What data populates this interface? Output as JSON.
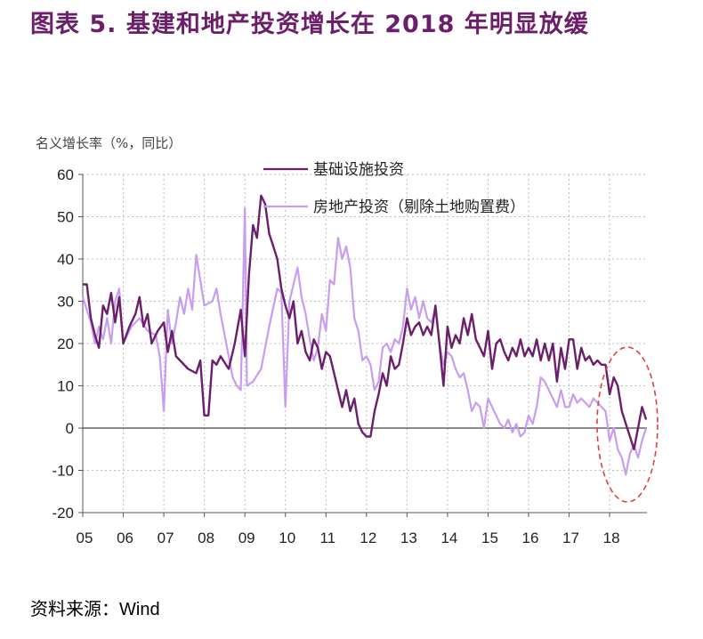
{
  "title": "图表  5. 基建和地产投资增长在 2018 年明显放缓",
  "source": "资料来源：Wind",
  "colors": {
    "title": "#6b1f6b",
    "infra": "#6b1f6b",
    "realestate": "#c89cf0",
    "highlight": "#e0403c"
  },
  "chart_data": {
    "type": "line",
    "title": "图表 5. 基建和地产投资增长在 2018 年明显放缓",
    "ylabel": "名义增长率（%，同比）",
    "xlabel": "",
    "ylim": [
      -20,
      60
    ],
    "yticks": [
      60,
      50,
      40,
      30,
      20,
      10,
      0,
      -10,
      -20
    ],
    "xlim": [
      2005,
      2018.92
    ],
    "xticks": [
      {
        "year": 2005,
        "label": "05"
      },
      {
        "year": 2006,
        "label": "06"
      },
      {
        "year": 2007,
        "label": "07"
      },
      {
        "year": 2008,
        "label": "08"
      },
      {
        "year": 2009,
        "label": "09"
      },
      {
        "year": 2010,
        "label": "10"
      },
      {
        "year": 2011,
        "label": "11"
      },
      {
        "year": 2012,
        "label": "12"
      },
      {
        "year": 2013,
        "label": "13"
      },
      {
        "year": 2014,
        "label": "14"
      },
      {
        "year": 2015,
        "label": "15"
      },
      {
        "year": 2016,
        "label": "16"
      },
      {
        "year": 2017,
        "label": "17"
      },
      {
        "year": 2018,
        "label": "18"
      }
    ],
    "grid": "vertical+horizontal dotted",
    "legend": "top",
    "annotation": "dashed red ellipse highlighting 2018",
    "series": [
      {
        "name": "基础设施投资",
        "points": [
          [
            2005.0,
            34
          ],
          [
            2005.1,
            34
          ],
          [
            2005.2,
            26
          ],
          [
            2005.3,
            22
          ],
          [
            2005.4,
            19
          ],
          [
            2005.5,
            29
          ],
          [
            2005.6,
            27
          ],
          [
            2005.7,
            32
          ],
          [
            2005.8,
            25
          ],
          [
            2005.9,
            31
          ],
          [
            2006.0,
            20
          ],
          [
            2006.15,
            24
          ],
          [
            2006.3,
            27
          ],
          [
            2006.4,
            31
          ],
          [
            2006.5,
            24
          ],
          [
            2006.6,
            27
          ],
          [
            2006.7,
            20
          ],
          [
            2006.85,
            23
          ],
          [
            2007.0,
            25
          ],
          [
            2007.1,
            18
          ],
          [
            2007.2,
            23
          ],
          [
            2007.3,
            17
          ],
          [
            2007.4,
            16
          ],
          [
            2007.6,
            14
          ],
          [
            2007.8,
            13
          ],
          [
            2007.9,
            16
          ],
          [
            2008.0,
            3
          ],
          [
            2008.1,
            3
          ],
          [
            2008.2,
            16
          ],
          [
            2008.3,
            15
          ],
          [
            2008.4,
            17
          ],
          [
            2008.6,
            14
          ],
          [
            2008.75,
            20
          ],
          [
            2008.9,
            28
          ],
          [
            2009.0,
            17
          ],
          [
            2009.1,
            36
          ],
          [
            2009.2,
            48
          ],
          [
            2009.3,
            45
          ],
          [
            2009.4,
            55
          ],
          [
            2009.5,
            53
          ],
          [
            2009.6,
            46
          ],
          [
            2009.7,
            43
          ],
          [
            2009.8,
            40
          ],
          [
            2009.9,
            33
          ],
          [
            2010.0,
            29
          ],
          [
            2010.1,
            26
          ],
          [
            2010.2,
            30
          ],
          [
            2010.3,
            20
          ],
          [
            2010.4,
            23
          ],
          [
            2010.5,
            18
          ],
          [
            2010.6,
            16
          ],
          [
            2010.7,
            21
          ],
          [
            2010.8,
            19
          ],
          [
            2010.9,
            14
          ],
          [
            2011.0,
            18
          ],
          [
            2011.1,
            17
          ],
          [
            2011.2,
            13
          ],
          [
            2011.3,
            9
          ],
          [
            2011.4,
            5
          ],
          [
            2011.5,
            9
          ],
          [
            2011.6,
            4
          ],
          [
            2011.7,
            7
          ],
          [
            2011.8,
            1
          ],
          [
            2011.9,
            -1
          ],
          [
            2012.0,
            -2
          ],
          [
            2012.1,
            -2
          ],
          [
            2012.2,
            4
          ],
          [
            2012.3,
            8
          ],
          [
            2012.4,
            13
          ],
          [
            2012.5,
            10
          ],
          [
            2012.6,
            17
          ],
          [
            2012.7,
            14
          ],
          [
            2012.8,
            15
          ],
          [
            2012.9,
            20
          ],
          [
            2013.0,
            26
          ],
          [
            2013.1,
            22
          ],
          [
            2013.2,
            24
          ],
          [
            2013.3,
            25
          ],
          [
            2013.4,
            22
          ],
          [
            2013.5,
            24
          ],
          [
            2013.6,
            22
          ],
          [
            2013.7,
            29
          ],
          [
            2013.8,
            20
          ],
          [
            2013.9,
            10
          ],
          [
            2014.0,
            24
          ],
          [
            2014.1,
            19
          ],
          [
            2014.2,
            22
          ],
          [
            2014.3,
            20
          ],
          [
            2014.4,
            26
          ],
          [
            2014.5,
            22
          ],
          [
            2014.6,
            27
          ],
          [
            2014.7,
            21
          ],
          [
            2014.8,
            19
          ],
          [
            2014.9,
            17
          ],
          [
            2015.0,
            23
          ],
          [
            2015.1,
            14
          ],
          [
            2015.2,
            20
          ],
          [
            2015.3,
            21
          ],
          [
            2015.4,
            18
          ],
          [
            2015.5,
            16
          ],
          [
            2015.6,
            19
          ],
          [
            2015.7,
            17
          ],
          [
            2015.8,
            21
          ],
          [
            2015.9,
            17
          ],
          [
            2016.0,
            19
          ],
          [
            2016.1,
            17
          ],
          [
            2016.2,
            21
          ],
          [
            2016.3,
            16
          ],
          [
            2016.4,
            20
          ],
          [
            2016.5,
            16
          ],
          [
            2016.6,
            20
          ],
          [
            2016.7,
            11
          ],
          [
            2016.8,
            19
          ],
          [
            2016.9,
            14
          ],
          [
            2017.0,
            21
          ],
          [
            2017.1,
            21
          ],
          [
            2017.2,
            14
          ],
          [
            2017.3,
            19
          ],
          [
            2017.4,
            16
          ],
          [
            2017.5,
            17
          ],
          [
            2017.6,
            15
          ],
          [
            2017.7,
            16
          ],
          [
            2017.8,
            15
          ],
          [
            2017.9,
            15
          ],
          [
            2018.0,
            8
          ],
          [
            2018.1,
            12
          ],
          [
            2018.2,
            10
          ],
          [
            2018.3,
            4
          ],
          [
            2018.4,
            1
          ],
          [
            2018.5,
            -2
          ],
          [
            2018.6,
            -5
          ],
          [
            2018.7,
            0
          ],
          [
            2018.8,
            5
          ],
          [
            2018.9,
            2
          ]
        ]
      },
      {
        "name": "房地产投资（剔除土地购置费）",
        "points": [
          [
            2005.0,
            31
          ],
          [
            2005.1,
            28
          ],
          [
            2005.2,
            25
          ],
          [
            2005.3,
            20
          ],
          [
            2005.4,
            24
          ],
          [
            2005.5,
            21
          ],
          [
            2005.6,
            26
          ],
          [
            2005.7,
            20
          ],
          [
            2005.8,
            30
          ],
          [
            2005.9,
            33
          ],
          [
            2006.0,
            20
          ],
          [
            2006.2,
            24
          ],
          [
            2006.4,
            26
          ],
          [
            2006.6,
            23
          ],
          [
            2006.8,
            22
          ],
          [
            2006.9,
            17
          ],
          [
            2007.0,
            4
          ],
          [
            2007.1,
            28
          ],
          [
            2007.2,
            20
          ],
          [
            2007.3,
            25
          ],
          [
            2007.4,
            31
          ],
          [
            2007.5,
            27
          ],
          [
            2007.6,
            33
          ],
          [
            2007.7,
            28
          ],
          [
            2007.8,
            41
          ],
          [
            2007.9,
            35
          ],
          [
            2008.0,
            29
          ],
          [
            2008.2,
            30
          ],
          [
            2008.3,
            33
          ],
          [
            2008.4,
            27
          ],
          [
            2008.6,
            17
          ],
          [
            2008.7,
            12
          ],
          [
            2008.8,
            10
          ],
          [
            2008.9,
            9
          ],
          [
            2009.0,
            52
          ],
          [
            2009.05,
            10
          ],
          [
            2009.2,
            11
          ],
          [
            2009.4,
            14
          ],
          [
            2009.6,
            24
          ],
          [
            2009.8,
            33
          ],
          [
            2009.9,
            32
          ],
          [
            2010.0,
            5
          ],
          [
            2010.1,
            30
          ],
          [
            2010.3,
            38
          ],
          [
            2010.4,
            31
          ],
          [
            2010.5,
            27
          ],
          [
            2010.6,
            21
          ],
          [
            2010.7,
            16
          ],
          [
            2010.8,
            19
          ],
          [
            2010.9,
            27
          ],
          [
            2011.0,
            23
          ],
          [
            2011.1,
            35
          ],
          [
            2011.2,
            34
          ],
          [
            2011.3,
            45
          ],
          [
            2011.4,
            40
          ],
          [
            2011.5,
            43
          ],
          [
            2011.6,
            38
          ],
          [
            2011.7,
            26
          ],
          [
            2011.8,
            23
          ],
          [
            2011.9,
            16
          ],
          [
            2012.0,
            17
          ],
          [
            2012.1,
            15
          ],
          [
            2012.2,
            9
          ],
          [
            2012.3,
            11
          ],
          [
            2012.4,
            19
          ],
          [
            2012.5,
            20
          ],
          [
            2012.6,
            18
          ],
          [
            2012.7,
            21
          ],
          [
            2012.8,
            20
          ],
          [
            2012.9,
            24
          ],
          [
            2013.0,
            33
          ],
          [
            2013.1,
            28
          ],
          [
            2013.2,
            31
          ],
          [
            2013.3,
            26
          ],
          [
            2013.4,
            30
          ],
          [
            2013.5,
            26
          ],
          [
            2013.6,
            25
          ],
          [
            2013.7,
            28
          ],
          [
            2013.8,
            20
          ],
          [
            2013.9,
            15
          ],
          [
            2014.0,
            18
          ],
          [
            2014.1,
            17
          ],
          [
            2014.2,
            14
          ],
          [
            2014.3,
            12
          ],
          [
            2014.4,
            13
          ],
          [
            2014.5,
            9
          ],
          [
            2014.6,
            4
          ],
          [
            2014.7,
            6
          ],
          [
            2014.8,
            5
          ],
          [
            2014.9,
            0
          ],
          [
            2015.0,
            7
          ],
          [
            2015.1,
            5
          ],
          [
            2015.2,
            3
          ],
          [
            2015.3,
            1
          ],
          [
            2015.4,
            0
          ],
          [
            2015.5,
            2
          ],
          [
            2015.6,
            -1
          ],
          [
            2015.7,
            1
          ],
          [
            2015.8,
            -2
          ],
          [
            2015.9,
            -1
          ],
          [
            2016.0,
            3
          ],
          [
            2016.1,
            1
          ],
          [
            2016.2,
            5
          ],
          [
            2016.3,
            12
          ],
          [
            2016.4,
            11
          ],
          [
            2016.5,
            9
          ],
          [
            2016.6,
            7
          ],
          [
            2016.7,
            5
          ],
          [
            2016.8,
            9
          ],
          [
            2016.9,
            5
          ],
          [
            2017.0,
            5
          ],
          [
            2017.1,
            8
          ],
          [
            2017.2,
            6
          ],
          [
            2017.3,
            7
          ],
          [
            2017.4,
            6
          ],
          [
            2017.5,
            5
          ],
          [
            2017.6,
            7
          ],
          [
            2017.7,
            6
          ],
          [
            2017.8,
            5
          ],
          [
            2017.9,
            4
          ],
          [
            2018.0,
            -3
          ],
          [
            2018.1,
            0
          ],
          [
            2018.2,
            -5
          ],
          [
            2018.3,
            -7
          ],
          [
            2018.4,
            -11
          ],
          [
            2018.5,
            -6
          ],
          [
            2018.6,
            -4
          ],
          [
            2018.7,
            -7
          ],
          [
            2018.8,
            -3
          ],
          [
            2018.9,
            0
          ]
        ]
      }
    ]
  }
}
